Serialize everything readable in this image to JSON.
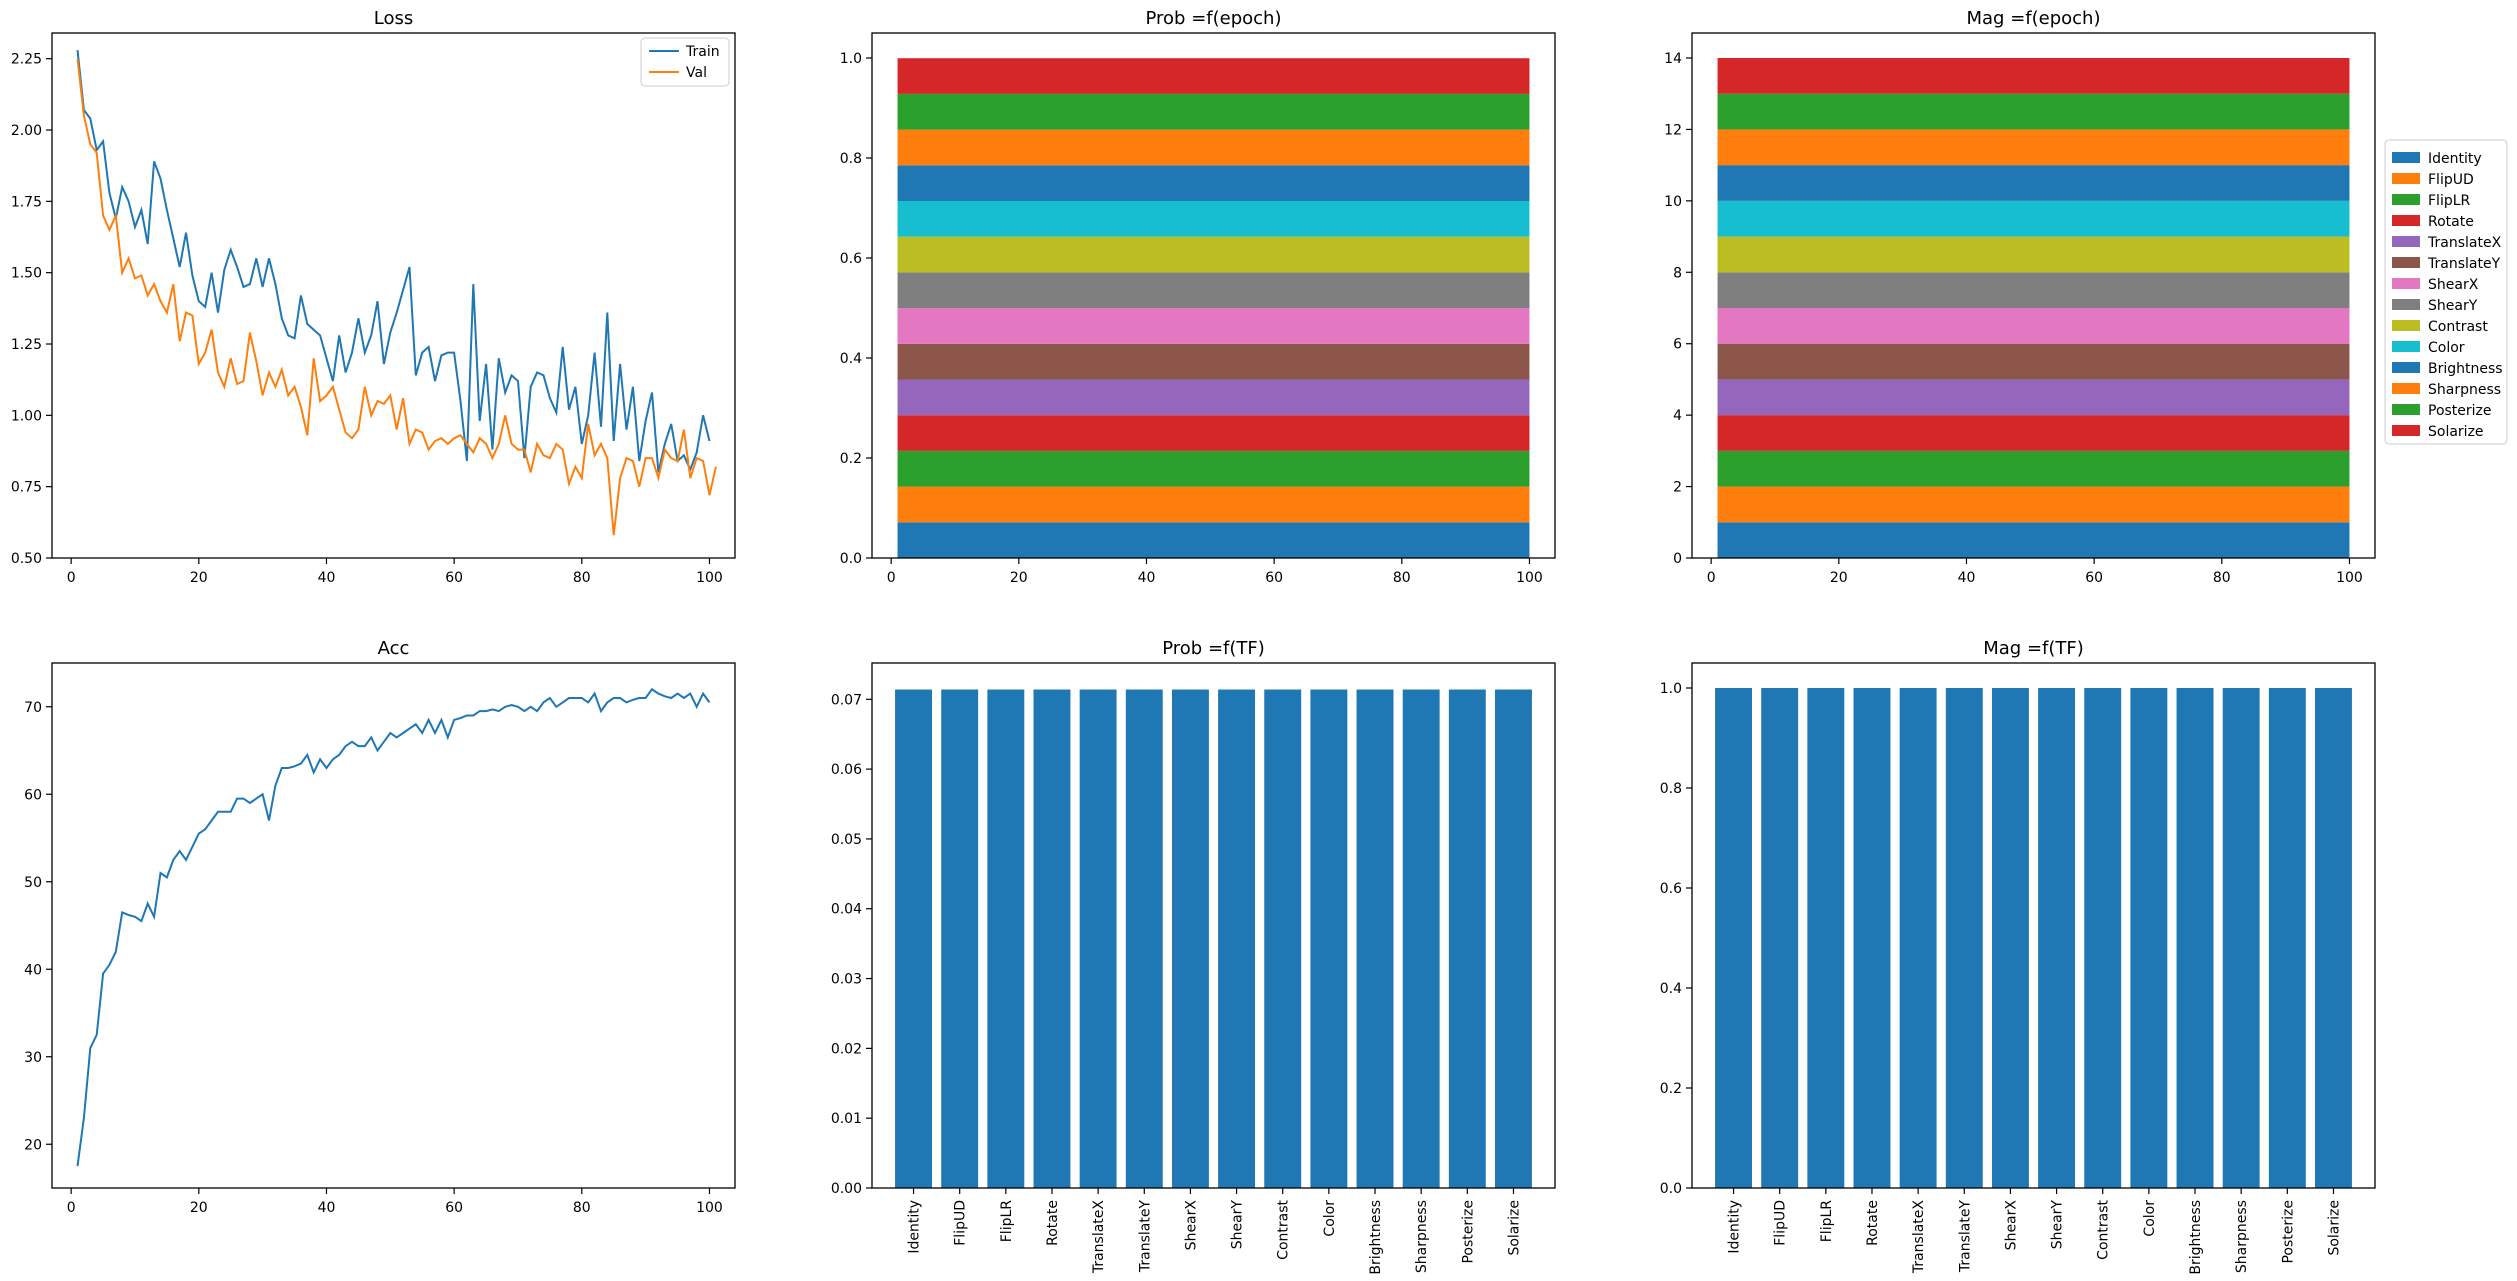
{
  "figure": {
    "background": "#ffffff"
  },
  "transforms": [
    "Identity",
    "FlipUD",
    "FlipLR",
    "Rotate",
    "TranslateX",
    "TranslateY",
    "ShearX",
    "ShearY",
    "Contrast",
    "Color",
    "Brightness",
    "Sharpness",
    "Posterize",
    "Solarize"
  ],
  "tf_colors": [
    "#1f77b4",
    "#ff7f0e",
    "#2ca02c",
    "#d62728",
    "#9467bd",
    "#8c564b",
    "#e377c2",
    "#7f7f7f",
    "#bcbd22",
    "#17becf",
    "#1f77b4",
    "#ff7f0e",
    "#2ca02c",
    "#d62728"
  ],
  "chart_data": [
    {
      "id": "loss",
      "type": "line",
      "title": "Loss",
      "xlabel": "",
      "ylabel": "",
      "xlim": [
        -3,
        104
      ],
      "ylim": [
        0.5,
        2.34
      ],
      "xticks": [
        0,
        20,
        40,
        60,
        80,
        100
      ],
      "yticks": [
        0.5,
        0.75,
        1.0,
        1.25,
        1.5,
        1.75,
        2.0,
        2.25
      ],
      "ytick_labels": [
        "0.50",
        "0.75",
        "1.00",
        "1.25",
        "1.50",
        "1.75",
        "2.00",
        "2.25"
      ],
      "legend": {
        "placement": "top-right",
        "entries": [
          "Train",
          "Val"
        ]
      },
      "series": [
        {
          "name": "Train",
          "color": "#1f77b4",
          "values": [
            2.28,
            2.07,
            2.04,
            1.93,
            1.96,
            1.78,
            1.69,
            1.8,
            1.75,
            1.66,
            1.72,
            1.6,
            1.89,
            1.83,
            1.72,
            1.62,
            1.52,
            1.64,
            1.49,
            1.4,
            1.38,
            1.5,
            1.36,
            1.51,
            1.58,
            1.52,
            1.45,
            1.46,
            1.55,
            1.45,
            1.55,
            1.46,
            1.34,
            1.28,
            1.27,
            1.42,
            1.32,
            1.3,
            1.28,
            1.2,
            1.12,
            1.28,
            1.15,
            1.22,
            1.34,
            1.22,
            1.28,
            1.4,
            1.18,
            1.29,
            1.36,
            1.44,
            1.52,
            1.14,
            1.22,
            1.24,
            1.12,
            1.21,
            1.22,
            1.22,
            1.05,
            0.84,
            1.46,
            0.98,
            1.18,
            0.88,
            1.2,
            1.08,
            1.14,
            1.12,
            0.85,
            1.1,
            1.15,
            1.14,
            1.06,
            1.01,
            1.24,
            1.02,
            1.1,
            0.9,
            1.0,
            1.22,
            0.96,
            1.36,
            0.91,
            1.18,
            0.95,
            1.1,
            0.84,
            0.98,
            1.08,
            0.8,
            0.9,
            0.97,
            0.84,
            0.86,
            0.81,
            0.87,
            1.0,
            0.91
          ]
        },
        {
          "name": "Val",
          "color": "#ff7f0e",
          "values": [
            2.25,
            2.05,
            1.95,
            1.92,
            1.7,
            1.65,
            1.7,
            1.5,
            1.55,
            1.48,
            1.49,
            1.42,
            1.46,
            1.4,
            1.36,
            1.46,
            1.26,
            1.36,
            1.35,
            1.18,
            1.22,
            1.3,
            1.15,
            1.1,
            1.2,
            1.11,
            1.12,
            1.29,
            1.19,
            1.07,
            1.15,
            1.1,
            1.16,
            1.07,
            1.1,
            1.03,
            0.93,
            1.2,
            1.05,
            1.07,
            1.1,
            1.02,
            0.94,
            0.92,
            0.95,
            1.1,
            1.0,
            1.05,
            1.04,
            1.07,
            0.95,
            1.06,
            0.9,
            0.95,
            0.94,
            0.88,
            0.91,
            0.92,
            0.9,
            0.92,
            0.93,
            0.9,
            0.87,
            0.92,
            0.9,
            0.85,
            0.9,
            1.0,
            0.9,
            0.88,
            0.88,
            0.8,
            0.9,
            0.86,
            0.85,
            0.9,
            0.88,
            0.76,
            0.82,
            0.78,
            0.97,
            0.86,
            0.9,
            0.85,
            0.58,
            0.78,
            0.85,
            0.84,
            0.75,
            0.85,
            0.85,
            0.78,
            0.88,
            0.85,
            0.84,
            0.95,
            0.78,
            0.85,
            0.84,
            0.72,
            0.82
          ]
        }
      ]
    },
    {
      "id": "prob-epoch",
      "type": "area",
      "title": "Prob =f(epoch)",
      "xlabel": "",
      "ylabel": "",
      "xlim": [
        -3,
        104
      ],
      "ylim": [
        0,
        1.05
      ],
      "xticks": [
        0,
        20,
        40,
        60,
        80,
        100
      ],
      "yticks": [
        0,
        0.2,
        0.4,
        0.6,
        0.8,
        1.0
      ],
      "ytick_labels": [
        "0.0",
        "0.2",
        "0.4",
        "0.6",
        "0.8",
        "1.0"
      ],
      "x_range": [
        1,
        100
      ],
      "stack_step": 0.0714,
      "series_names": "transforms"
    },
    {
      "id": "mag-epoch",
      "type": "area",
      "title": "Mag =f(epoch)",
      "xlabel": "",
      "ylabel": "",
      "xlim": [
        -3,
        104
      ],
      "ylim": [
        0,
        14.7
      ],
      "xticks": [
        0,
        20,
        40,
        60,
        80,
        100
      ],
      "yticks": [
        0,
        2,
        4,
        6,
        8,
        10,
        12,
        14
      ],
      "ytick_labels": [
        "0",
        "2",
        "4",
        "6",
        "8",
        "10",
        "12",
        "14"
      ],
      "x_range": [
        1,
        100
      ],
      "stack_step": 1.0,
      "legend": {
        "placement": "outside-right",
        "entries": "transforms"
      }
    },
    {
      "id": "acc",
      "type": "line",
      "title": "Acc",
      "xlabel": "",
      "ylabel": "",
      "xlim": [
        -3,
        104
      ],
      "ylim": [
        15,
        75
      ],
      "xticks": [
        0,
        20,
        40,
        60,
        80,
        100
      ],
      "yticks": [
        20,
        30,
        40,
        50,
        60,
        70
      ],
      "ytick_labels": [
        "20",
        "30",
        "40",
        "50",
        "60",
        "70"
      ],
      "series": [
        {
          "name": "",
          "color": "#1f77b4",
          "values": [
            17.5,
            23.0,
            31.0,
            32.5,
            39.5,
            40.5,
            42.0,
            46.5,
            46.2,
            46.0,
            45.5,
            47.5,
            46.0,
            51.0,
            50.5,
            52.5,
            53.5,
            52.5,
            54.0,
            55.5,
            56.0,
            57.0,
            58.0,
            58.0,
            58.0,
            59.5,
            59.5,
            59.0,
            59.5,
            60.0,
            57.0,
            61.0,
            63.0,
            63.0,
            63.2,
            63.5,
            64.5,
            62.5,
            64.0,
            63.0,
            64.0,
            64.5,
            65.5,
            66.0,
            65.5,
            65.5,
            66.5,
            65.0,
            66.0,
            67.0,
            66.5,
            67.0,
            67.5,
            68.0,
            67.0,
            68.5,
            67.0,
            68.5,
            66.5,
            68.5,
            68.7,
            69.0,
            69.0,
            69.5,
            69.5,
            69.7,
            69.5,
            70.0,
            70.2,
            70.0,
            69.5,
            70.0,
            69.5,
            70.5,
            71.0,
            70.0,
            70.5,
            71.0,
            71.0,
            71.0,
            70.5,
            71.5,
            69.5,
            70.5,
            71.0,
            71.0,
            70.5,
            70.8,
            71.0,
            71.0,
            72.0,
            71.5,
            71.2,
            71.0,
            71.5,
            71.0,
            71.5,
            70.0,
            71.5,
            70.5
          ]
        }
      ]
    },
    {
      "id": "prob-tf",
      "type": "bar",
      "title": "Prob =f(TF)",
      "xlabel": "",
      "ylabel": "",
      "categories": "transforms",
      "ylim": [
        0,
        0.0752
      ],
      "yticks": [
        0,
        0.01,
        0.02,
        0.03,
        0.04,
        0.05,
        0.06,
        0.07
      ],
      "ytick_labels": [
        "0.00",
        "0.01",
        "0.02",
        "0.03",
        "0.04",
        "0.05",
        "0.06",
        "0.07"
      ],
      "values": [
        0.0714,
        0.0714,
        0.0714,
        0.0714,
        0.0714,
        0.0714,
        0.0714,
        0.0714,
        0.0714,
        0.0714,
        0.0714,
        0.0714,
        0.0714,
        0.0714
      ],
      "color": "#1f77b4"
    },
    {
      "id": "mag-tf",
      "type": "bar",
      "title": "Mag =f(TF)",
      "xlabel": "",
      "ylabel": "",
      "categories": "transforms",
      "ylim": [
        0,
        1.05
      ],
      "yticks": [
        0,
        0.2,
        0.4,
        0.6,
        0.8,
        1.0
      ],
      "ytick_labels": [
        "0.0",
        "0.2",
        "0.4",
        "0.6",
        "0.8",
        "1.0"
      ],
      "values": [
        1,
        1,
        1,
        1,
        1,
        1,
        1,
        1,
        1,
        1,
        1,
        1,
        1,
        1
      ],
      "color": "#1f77b4"
    }
  ]
}
